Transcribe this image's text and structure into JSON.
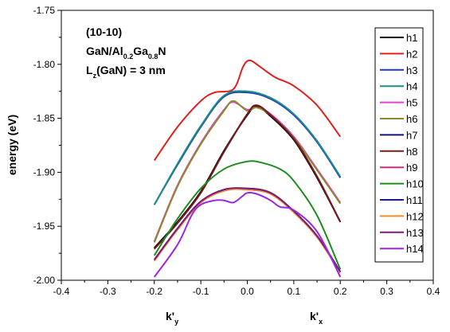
{
  "chart_data": {
    "type": "line",
    "title": "",
    "xlabel": "",
    "ylabel": "energy (eV)",
    "xlim": [
      -0.4,
      0.4
    ],
    "ylim": [
      -2.0,
      -1.75
    ],
    "xticks": [
      -0.4,
      -0.3,
      -0.2,
      -0.1,
      0.0,
      0.1,
      0.2,
      0.3,
      0.4
    ],
    "xtick_labels": [
      "-0.4",
      "-0.3",
      "-0.2",
      "-0.1",
      "0.0",
      "0.1",
      "0.2",
      "0.3",
      "0.4"
    ],
    "yticks": [
      -2.0,
      -1.95,
      -1.9,
      -1.85,
      -1.8,
      -1.75
    ],
    "ytick_labels": [
      "-2.00",
      "-1.95",
      "-1.90",
      "-1.85",
      "-1.80",
      "-1.75"
    ],
    "grid": false,
    "legend_position": "right",
    "axis_annotations": {
      "left": {
        "main": "k'",
        "sub": "y"
      },
      "right": {
        "main": "k'",
        "sub": "x"
      }
    },
    "annotation": {
      "orientation": "(10-10)",
      "material": {
        "p1": "GaN/Al",
        "s1": "0.2",
        "p2": "Ga",
        "s2": "0.8",
        "p3": "N"
      },
      "width": {
        "p1": "L",
        "s1": "z",
        "p2": "(GaN) = 3 nm"
      }
    },
    "series": [
      {
        "name": "h1",
        "color": "#000000",
        "points": [
          [
            -0.2,
            -1.97
          ],
          [
            -0.15,
            -1.946
          ],
          [
            -0.1,
            -1.918
          ],
          [
            -0.05,
            -1.88
          ],
          [
            0.0,
            -1.847
          ],
          [
            0.02,
            -1.839
          ],
          [
            0.05,
            -1.848
          ],
          [
            0.1,
            -1.87
          ],
          [
            0.15,
            -1.905
          ],
          [
            0.2,
            -1.946
          ]
        ]
      },
      {
        "name": "h2",
        "color": "#e0201c",
        "points": [
          [
            -0.2,
            -1.889
          ],
          [
            -0.15,
            -1.858
          ],
          [
            -0.1,
            -1.834
          ],
          [
            -0.07,
            -1.826
          ],
          [
            -0.03,
            -1.823
          ],
          [
            -0.01,
            -1.803
          ],
          [
            0.0,
            -1.797
          ],
          [
            0.01,
            -1.797
          ],
          [
            0.03,
            -1.803
          ],
          [
            0.06,
            -1.812
          ],
          [
            0.1,
            -1.82
          ],
          [
            0.15,
            -1.838
          ],
          [
            0.2,
            -1.867
          ]
        ]
      },
      {
        "name": "h3",
        "color": "#2433c2",
        "points": [
          [
            -0.2,
            -1.93
          ],
          [
            -0.15,
            -1.893
          ],
          [
            -0.1,
            -1.858
          ],
          [
            -0.05,
            -1.83
          ],
          [
            0.0,
            -1.826
          ],
          [
            0.05,
            -1.832
          ],
          [
            0.1,
            -1.847
          ],
          [
            0.15,
            -1.872
          ],
          [
            0.2,
            -1.905
          ]
        ]
      },
      {
        "name": "h4",
        "color": "#1a8c8c",
        "points": [
          [
            -0.2,
            -1.93
          ],
          [
            -0.15,
            -1.892
          ],
          [
            -0.1,
            -1.857
          ],
          [
            -0.05,
            -1.829
          ],
          [
            0.0,
            -1.825
          ],
          [
            0.05,
            -1.831
          ],
          [
            0.1,
            -1.846
          ],
          [
            0.15,
            -1.871
          ],
          [
            0.2,
            -1.904
          ]
        ]
      },
      {
        "name": "h5",
        "color": "#e43fd8",
        "points": [
          [
            -0.2,
            -1.964
          ],
          [
            -0.15,
            -1.912
          ],
          [
            -0.1,
            -1.873
          ],
          [
            -0.05,
            -1.842
          ],
          [
            -0.03,
            -1.835
          ],
          [
            0.0,
            -1.842
          ],
          [
            0.02,
            -1.84
          ],
          [
            0.05,
            -1.846
          ],
          [
            0.1,
            -1.867
          ],
          [
            0.15,
            -1.897
          ],
          [
            0.2,
            -1.928
          ]
        ]
      },
      {
        "name": "h6",
        "color": "#8c8a28",
        "points": [
          [
            -0.2,
            -1.965
          ],
          [
            -0.15,
            -1.913
          ],
          [
            -0.1,
            -1.874
          ],
          [
            -0.05,
            -1.843
          ],
          [
            -0.03,
            -1.834
          ],
          [
            0.0,
            -1.843
          ],
          [
            0.02,
            -1.84
          ],
          [
            0.05,
            -1.847
          ],
          [
            0.1,
            -1.868
          ],
          [
            0.15,
            -1.898
          ],
          [
            0.2,
            -1.929
          ]
        ]
      },
      {
        "name": "h7",
        "color": "#141478",
        "points": [
          [
            -0.2,
            -1.971
          ],
          [
            -0.15,
            -1.947
          ],
          [
            -0.1,
            -1.919
          ],
          [
            -0.05,
            -1.881
          ],
          [
            0.0,
            -1.846
          ],
          [
            0.02,
            -1.838
          ],
          [
            0.05,
            -1.847
          ],
          [
            0.1,
            -1.869
          ],
          [
            0.15,
            -1.904
          ],
          [
            0.2,
            -1.946
          ]
        ]
      },
      {
        "name": "h8",
        "color": "#7a1a1a",
        "points": [
          [
            -0.2,
            -1.971
          ],
          [
            -0.15,
            -1.947
          ],
          [
            -0.1,
            -1.919
          ],
          [
            -0.05,
            -1.881
          ],
          [
            0.0,
            -1.846
          ],
          [
            0.02,
            -1.838
          ],
          [
            0.05,
            -1.847
          ],
          [
            0.1,
            -1.869
          ],
          [
            0.15,
            -1.904
          ],
          [
            0.2,
            -1.946
          ]
        ]
      },
      {
        "name": "h9",
        "color": "#e0287a",
        "points": [
          [
            -0.2,
            -1.982
          ],
          [
            -0.15,
            -1.953
          ],
          [
            -0.1,
            -1.928
          ],
          [
            -0.05,
            -1.917
          ],
          [
            0.0,
            -1.916
          ],
          [
            0.05,
            -1.92
          ],
          [
            0.1,
            -1.937
          ],
          [
            0.15,
            -1.96
          ],
          [
            0.2,
            -1.993
          ]
        ]
      },
      {
        "name": "h10",
        "color": "#1e8c1e",
        "points": [
          [
            -0.2,
            -1.977
          ],
          [
            -0.15,
            -1.943
          ],
          [
            -0.1,
            -1.915
          ],
          [
            -0.05,
            -1.897
          ],
          [
            0.0,
            -1.89
          ],
          [
            0.03,
            -1.891
          ],
          [
            0.07,
            -1.897
          ],
          [
            0.1,
            -1.908
          ],
          [
            0.15,
            -1.94
          ],
          [
            0.2,
            -1.99
          ]
        ]
      },
      {
        "name": "h11",
        "color": "#1a1a96",
        "points": [
          [
            -0.2,
            -1.981
          ],
          [
            -0.15,
            -1.952
          ],
          [
            -0.1,
            -1.927
          ],
          [
            -0.05,
            -1.917
          ],
          [
            0.0,
            -1.915
          ],
          [
            0.05,
            -1.919
          ],
          [
            0.1,
            -1.936
          ],
          [
            0.15,
            -1.959
          ],
          [
            0.2,
            -1.992
          ]
        ]
      },
      {
        "name": "h12",
        "color": "#f08c28",
        "points": [
          [
            -0.2,
            -1.982
          ],
          [
            -0.15,
            -1.953
          ],
          [
            -0.1,
            -1.928
          ],
          [
            -0.05,
            -1.917
          ],
          [
            0.0,
            -1.916
          ],
          [
            0.05,
            -1.92
          ],
          [
            0.1,
            -1.937
          ],
          [
            0.15,
            -1.96
          ],
          [
            0.2,
            -1.993
          ]
        ]
      },
      {
        "name": "h13",
        "color": "#7a1a7a",
        "points": [
          [
            -0.2,
            -1.981
          ],
          [
            -0.15,
            -1.952
          ],
          [
            -0.1,
            -1.927
          ],
          [
            -0.05,
            -1.916
          ],
          [
            0.0,
            -1.915
          ],
          [
            0.05,
            -1.919
          ],
          [
            0.1,
            -1.936
          ],
          [
            0.15,
            -1.959
          ],
          [
            0.2,
            -1.992
          ]
        ]
      },
      {
        "name": "h14",
        "color": "#9a28e0",
        "points": [
          [
            -0.2,
            -1.997
          ],
          [
            -0.15,
            -1.967
          ],
          [
            -0.12,
            -1.94
          ],
          [
            -0.1,
            -1.93
          ],
          [
            -0.07,
            -1.926
          ],
          [
            -0.05,
            -1.926
          ],
          [
            -0.03,
            -1.928
          ],
          [
            -0.01,
            -1.922
          ],
          [
            0.0,
            -1.919
          ],
          [
            0.02,
            -1.92
          ],
          [
            0.05,
            -1.926
          ],
          [
            0.07,
            -1.932
          ],
          [
            0.1,
            -1.935
          ],
          [
            0.15,
            -1.955
          ],
          [
            0.2,
            -1.997
          ]
        ]
      }
    ]
  }
}
